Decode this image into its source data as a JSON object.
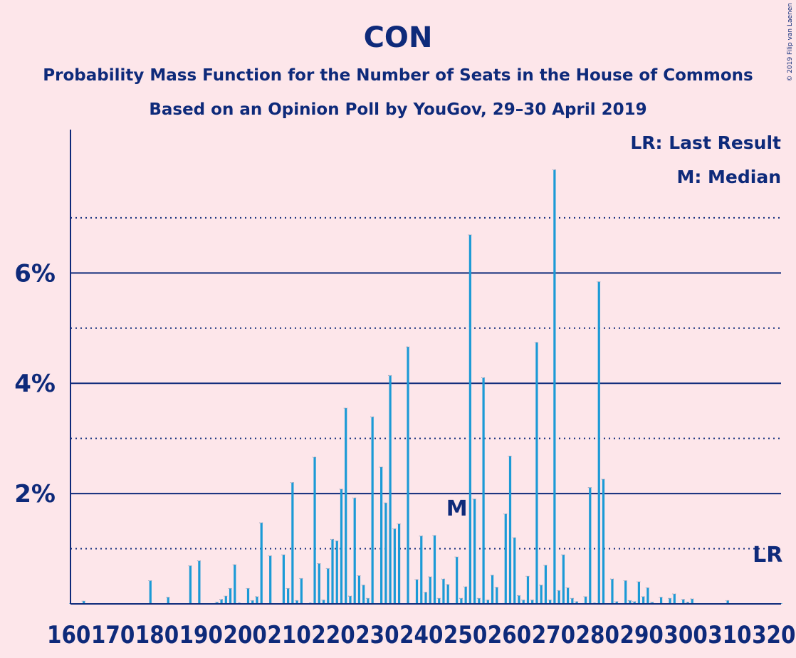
{
  "chart_data": {
    "type": "bar",
    "title": "CON",
    "subtitle1": "Probability Mass Function for the Number of Seats in the House of Commons",
    "subtitle2": "Based on an Opinion Poll by YouGov, 29–30 April 2019",
    "copyright": "© 2019 Filip van Laenen",
    "legend": [
      "LR: Last Result",
      "M: Median"
    ],
    "xlim": [
      160,
      320
    ],
    "ylim": [
      0,
      8.6
    ],
    "x_tick_labels": [
      "160",
      "170",
      "180",
      "190",
      "200",
      "210",
      "220",
      "230",
      "240",
      "250",
      "260",
      "270",
      "280",
      "290",
      "300",
      "310",
      "320"
    ],
    "y_tick_labels": [
      {
        "value": 2,
        "label": "2%"
      },
      {
        "value": 4,
        "label": "4%"
      },
      {
        "value": 6,
        "label": "6%"
      }
    ],
    "solid_gridlines": [
      2,
      4,
      6
    ],
    "dotted_gridlines": [
      1,
      3,
      5,
      7
    ],
    "bar_color": "#1b9ad6",
    "text_color": "#0e2a7a",
    "median": {
      "x": 247,
      "label": "M"
    },
    "last_result": {
      "x": 317,
      "label": "LR"
    },
    "seats": [
      160,
      161,
      162,
      163,
      164,
      165,
      166,
      167,
      168,
      169,
      170,
      171,
      172,
      173,
      174,
      175,
      176,
      177,
      178,
      179,
      180,
      181,
      182,
      183,
      184,
      185,
      186,
      187,
      188,
      189,
      190,
      191,
      192,
      193,
      194,
      195,
      196,
      197,
      198,
      199,
      200,
      201,
      202,
      203,
      204,
      205,
      206,
      207,
      208,
      209,
      210,
      211,
      212,
      213,
      214,
      215,
      216,
      217,
      218,
      219,
      220,
      221,
      222,
      223,
      224,
      225,
      226,
      227,
      228,
      229,
      230,
      231,
      232,
      233,
      234,
      235,
      236,
      237,
      238,
      239,
      240,
      241,
      242,
      243,
      244,
      245,
      246,
      247,
      248,
      249,
      250,
      251,
      252,
      253,
      254,
      255,
      256,
      257,
      258,
      259,
      260,
      261,
      262,
      263,
      264,
      265,
      266,
      267,
      268,
      269,
      270,
      271,
      272,
      273,
      274,
      275,
      276,
      277,
      278,
      279,
      280,
      281,
      282,
      283,
      284,
      285,
      286,
      287,
      288,
      289,
      290,
      291,
      292,
      293,
      294,
      295,
      296,
      297,
      298,
      299,
      300,
      301,
      302,
      303,
      304,
      305,
      306,
      307,
      308,
      309,
      310,
      311,
      312,
      313,
      314,
      315,
      316,
      317,
      318,
      319,
      320
    ],
    "values": [
      0.01,
      0.01,
      0.01,
      0.05,
      0.01,
      0.01,
      0.01,
      0.01,
      0.01,
      0.01,
      0.01,
      0.01,
      0.01,
      0.01,
      0.01,
      0.01,
      0.01,
      0.01,
      0.42,
      0.01,
      0.01,
      0.01,
      0.12,
      0.01,
      0.01,
      0.01,
      0.01,
      0.69,
      0.01,
      0.78,
      0.01,
      0.01,
      0.01,
      0.03,
      0.08,
      0.14,
      0.28,
      0.71,
      0.02,
      0.01,
      0.28,
      0.06,
      0.13,
      1.47,
      0.01,
      0.87,
      0.01,
      0.01,
      0.89,
      0.28,
      2.2,
      0.06,
      0.46,
      0.01,
      0.02,
      2.66,
      0.73,
      0.07,
      0.64,
      1.17,
      1.14,
      2.08,
      3.55,
      0.14,
      1.92,
      0.51,
      0.34,
      0.1,
      3.39,
      0.01,
      2.48,
      1.83,
      4.14,
      1.36,
      1.45,
      0.01,
      4.66,
      0.01,
      0.44,
      1.23,
      0.21,
      0.49,
      1.24,
      0.1,
      0.45,
      0.35,
      0.01,
      0.85,
      0.1,
      0.31,
      6.69,
      1.9,
      0.1,
      4.1,
      0.07,
      0.52,
      0.3,
      0.01,
      1.63,
      2.68,
      1.2,
      0.15,
      0.07,
      0.5,
      0.07,
      4.74,
      0.34,
      0.7,
      0.07,
      7.87,
      0.24,
      0.89,
      0.29,
      0.1,
      0.04,
      0.01,
      0.13,
      2.11,
      0.02,
      5.84,
      2.26,
      0.01,
      0.45,
      0.04,
      0.01,
      0.42,
      0.06,
      0.04,
      0.4,
      0.13,
      0.29,
      0.03,
      0.01,
      0.12,
      0.01,
      0.1,
      0.18,
      0.01,
      0.08,
      0.03,
      0.09,
      0.01,
      0.01,
      0.01,
      0.01,
      0.01,
      0.01,
      0.01,
      0.06,
      0.01,
      0.01,
      0.01,
      0.01,
      0.01,
      0.01,
      0.01,
      0.01,
      0.01,
      0.01,
      0.01,
      0.01
    ]
  }
}
